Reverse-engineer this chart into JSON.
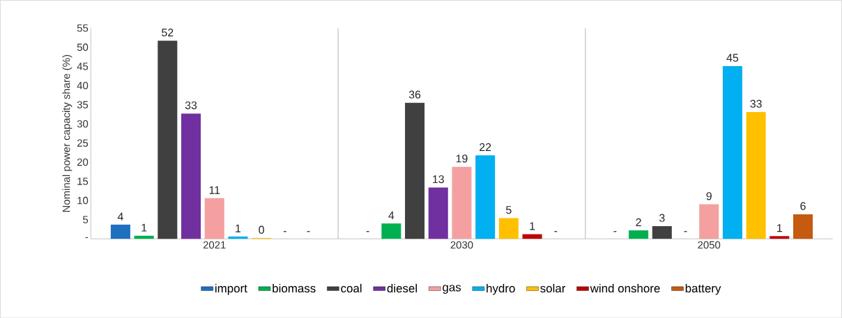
{
  "chart_data": {
    "type": "bar",
    "ylabel": "Nominal power capacity share (%)",
    "categories": [
      "2021",
      "2030",
      "2050"
    ],
    "ylim": [
      0,
      55
    ],
    "yticks": [
      {
        "value": 0,
        "label": "-"
      },
      5,
      10,
      15,
      20,
      25,
      30,
      35,
      40,
      45,
      50,
      55
    ],
    "legend": "bottom",
    "grid": false,
    "series": [
      {
        "name": "import",
        "color": "#1f6fbf",
        "values": [
          3.7,
          null,
          null
        ],
        "value_labels": [
          "4",
          "-",
          "-"
        ]
      },
      {
        "name": "biomass",
        "color": "#00b050",
        "values": [
          0.8,
          4.0,
          2.2
        ],
        "value_labels": [
          "1",
          "4",
          "2"
        ]
      },
      {
        "name": "coal",
        "color": "#404040",
        "values": [
          51.7,
          35.5,
          3.3
        ],
        "value_labels": [
          "52",
          "36",
          "3"
        ]
      },
      {
        "name": "diesel",
        "color": "#7030a0",
        "values": [
          32.7,
          13.4,
          null
        ],
        "value_labels": [
          "33",
          "13",
          "-"
        ]
      },
      {
        "name": "gas",
        "color": "#f4a0a0",
        "values": [
          10.6,
          18.8,
          9.0
        ],
        "value_labels": [
          "11",
          "19",
          "9"
        ]
      },
      {
        "name": "hydro",
        "color": "#00b0f0",
        "values": [
          0.6,
          21.8,
          45.1
        ],
        "value_labels": [
          "1",
          "22",
          "45"
        ]
      },
      {
        "name": "solar",
        "color": "#ffc000",
        "values": [
          0.2,
          5.4,
          33.1
        ],
        "value_labels": [
          "0",
          "5",
          "33"
        ]
      },
      {
        "name": "wind onshore",
        "color": "#c00000",
        "values": [
          null,
          1.2,
          0.7
        ],
        "value_labels": [
          "-",
          "1",
          "1"
        ]
      },
      {
        "name": "battery",
        "color": "#c55a11",
        "values": [
          null,
          null,
          6.4
        ],
        "value_labels": [
          "-",
          "-",
          "6"
        ]
      }
    ]
  }
}
